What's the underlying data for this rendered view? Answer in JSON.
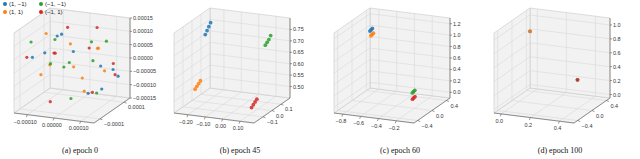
{
  "chart_data": [
    {
      "type": "scatter3d",
      "title": "(a) epoch 0",
      "legend": "upper left",
      "grid": true,
      "xlim": [
        -0.00015,
        0.00015
      ],
      "ylim": [
        -0.00015,
        0.00015
      ],
      "zlim": [
        -0.00015,
        0.00015
      ],
      "xticks": [
        {
          "value": -0.0001,
          "label": "−0.00010"
        },
        {
          "value": 0,
          "label": "0.00000"
        },
        {
          "value": 0.0001,
          "label": "0.00010"
        }
      ],
      "yticks": [
        {
          "value": -0.0001,
          "label": "−0.0001"
        },
        {
          "value": 0.0001,
          "label": "0.0001"
        }
      ],
      "zticks": [
        {
          "value": -0.00015,
          "label": "−0.00015"
        },
        {
          "value": -0.0001,
          "label": "−0.00010"
        },
        {
          "value": -5e-05,
          "label": "−0.00005"
        },
        {
          "value": 0,
          "label": "0.00000"
        },
        {
          "value": 5e-05,
          "label": "0.00005"
        },
        {
          "value": 0.0001,
          "label": "0.00010"
        },
        {
          "value": 0.00015,
          "label": "0.00015"
        }
      ],
      "series": [
        {
          "name": "(1, −1)",
          "color": "#1f77b4",
          "x": [
            -0.00012,
            5e-05,
            0.0001,
            -3e-05,
            8e-05,
            -9e-05,
            2e-05,
            0.00013,
            -6e-05,
            0.00011
          ],
          "y": [
            4e-05,
            -0.0001,
            0.00012,
            -2e-05,
            7e-05,
            -0.00013,
            9e-05,
            -5e-05,
            1e-05,
            0.00014
          ],
          "z": [
            2e-05,
            9e-05,
            -4e-05,
            0.00012,
            -0.0001,
            6e-05,
            -0.00013,
            3e-05,
            0.0001,
            -7e-05
          ]
        },
        {
          "name": "(1, 1)",
          "color": "#ff7f0e",
          "x": [
            3e-05,
            -0.00011,
            9e-05,
            -2e-05,
            0.00014,
            -7e-05,
            6e-05,
            -0.00013,
            1e-05,
            0.0001
          ],
          "y": [
            -8e-05,
            6e-05,
            2e-05,
            0.00013,
            -4e-05,
            -6e-05,
            -0.00012,
            3e-05,
            8e-05,
            -1e-05
          ],
          "z": [
            0.00011,
            -3e-05,
            7e-05,
            -9e-05,
            1e-05,
            0.00013,
            4e-05,
            -6e-05,
            -0.00012,
            8e-05
          ]
        },
        {
          "name": "(−1, −1)",
          "color": "#2ca02c",
          "x": [
            -8e-05,
            0.00012,
            -4e-05,
            7e-05,
            -0.00014,
            2e-05,
            0.0001,
            -0.0001,
            5e-05,
            -1e-05
          ],
          "y": [
            0.00011,
            2e-05,
            -9e-05,
            5e-05,
            -3e-05,
            0.00013,
            -6e-05,
            8e-05,
            -0.00012,
            0
          ],
          "z": [
            -5e-05,
            0.0001,
            3e-05,
            -0.00011,
            8e-05,
            -2e-05,
            0.00012,
            6e-05,
            -8e-05,
            1e-05
          ]
        },
        {
          "name": "(−1, 1)",
          "color": "#d62728",
          "x": [
            6e-05,
            -5e-05,
            0.00011,
            -0.00012,
            4e-05,
            9e-05,
            -9e-05,
            0,
            0.00013,
            -3e-05
          ],
          "y": [
            1e-05,
            -7e-05,
            0.0001,
            -0.00011,
            0.00012,
            -3e-05,
            5e-05,
            -0.00014,
            7e-05,
            3e-05
          ],
          "z": [
            7e-05,
            -0.00012,
            -1e-05,
            5e-05,
            0.00011,
            -8e-05,
            2e-05,
            9e-05,
            -4e-05,
            0.00013
          ]
        }
      ]
    },
    {
      "type": "scatter3d",
      "title": "(b) epoch 45",
      "grid": true,
      "xlim": [
        -0.28,
        0.18
      ],
      "ylim": [
        -0.2,
        0.2
      ],
      "zlim": [
        0.45,
        0.8
      ],
      "xticks": [
        {
          "value": -0.2,
          "label": "−0.20"
        },
        {
          "value": -0.1,
          "label": "−0.10"
        },
        {
          "value": 0,
          "label": "0.00"
        },
        {
          "value": 0.1,
          "label": "0.10"
        }
      ],
      "yticks": [
        {
          "value": -0.1,
          "label": "−0.1"
        },
        {
          "value": 0,
          "label": "0.0"
        },
        0.1
      ],
      "zticks": [
        {
          "value": 0.5,
          "label": "0.50"
        },
        0.55,
        {
          "value": 0.6,
          "label": "0.60"
        },
        0.65,
        {
          "value": 0.7,
          "label": "0.70"
        },
        0.75
      ],
      "series": [
        {
          "name": "(1, −1)",
          "color": "#1f77b4",
          "x": [
            -0.245,
            -0.24,
            -0.235,
            -0.23
          ],
          "y": [
            0.08,
            0.09,
            0.1,
            0.11
          ],
          "z": [
            0.72,
            0.735,
            0.75,
            0.765
          ]
        },
        {
          "name": "(1, 1)",
          "color": "#ff7f0e",
          "x": [
            -0.2,
            -0.195,
            -0.19,
            -0.185
          ],
          "y": [
            -0.12,
            -0.11,
            -0.1,
            -0.09
          ],
          "z": [
            0.54,
            0.55,
            0.56,
            0.57
          ]
        },
        {
          "name": "(−1, −1)",
          "color": "#2ca02c",
          "x": [
            0.09,
            0.095,
            0.1,
            0.105
          ],
          "y": [
            0.1,
            0.11,
            0.12,
            0.13
          ],
          "z": [
            0.7,
            0.71,
            0.72,
            0.735
          ]
        },
        {
          "name": "(−1, 1)",
          "color": "#d62728",
          "x": [
            0.14,
            0.145,
            0.15,
            0.155
          ],
          "y": [
            -0.15,
            -0.14,
            -0.13,
            -0.12
          ],
          "z": [
            0.5,
            0.51,
            0.52,
            0.53
          ]
        }
      ]
    },
    {
      "type": "scatter3d",
      "title": "(c) epoch 60",
      "grid": true,
      "xlim": [
        -0.9,
        0.0
      ],
      "ylim": [
        -0.5,
        0.5
      ],
      "zlim": [
        -0.1,
        1.3
      ],
      "xticks": [
        {
          "value": -0.8,
          "label": "−0.8"
        },
        {
          "value": -0.6,
          "label": "−0.6"
        },
        {
          "value": -0.4,
          "label": "−0.4"
        },
        {
          "value": -0.2,
          "label": "−0.2"
        }
      ],
      "yticks": [
        {
          "value": -0.4,
          "label": "−0.4"
        },
        {
          "value": 0,
          "label": "0.0"
        },
        0.4
      ],
      "zticks": [
        {
          "value": 0,
          "label": "0.0"
        },
        0.2,
        0.4,
        0.6,
        0.8,
        {
          "value": 1,
          "label": "1.0"
        },
        1.2
      ],
      "series": [
        {
          "name": "(1, −1)",
          "color": "#1f77b4",
          "x": [
            -0.82,
            -0.81,
            -0.8
          ],
          "y": [
            0.3,
            0.31,
            0.32
          ],
          "z": [
            1.0,
            1.02,
            1.04
          ]
        },
        {
          "name": "(1, 1)",
          "color": "#ff7f0e",
          "x": [
            -0.8,
            -0.79,
            -0.78
          ],
          "y": [
            0.28,
            0.29,
            0.3
          ],
          "z": [
            0.93,
            0.95,
            0.97
          ]
        },
        {
          "name": "(−1, −1)",
          "color": "#2ca02c",
          "x": [
            -0.1,
            -0.09,
            -0.08
          ],
          "y": [
            -0.3,
            -0.29,
            -0.28
          ],
          "z": [
            0.32,
            0.34,
            0.36
          ]
        },
        {
          "name": "(−1, 1)",
          "color": "#d62728",
          "x": [
            -0.09,
            -0.08,
            -0.07
          ],
          "y": [
            -0.32,
            -0.31,
            -0.3
          ],
          "z": [
            0.22,
            0.24,
            0.26
          ]
        }
      ]
    },
    {
      "type": "scatter3d",
      "title": "(d) epoch 100",
      "grid": true,
      "xlim": [
        -0.05,
        0.5
      ],
      "ylim": [
        -0.5,
        0.5
      ],
      "zlim": [
        -0.05,
        1.1
      ],
      "xticks": [
        {
          "value": 0,
          "label": "0.0"
        },
        0.2,
        0.4
      ],
      "yticks": [
        {
          "value": -0.4,
          "label": "−0.4"
        },
        {
          "value": 0,
          "label": "0.0"
        },
        0.4
      ],
      "zticks": [
        {
          "value": 0,
          "label": "0.0"
        },
        0.2,
        0.4,
        0.6,
        0.8,
        {
          "value": 1,
          "label": "1.0"
        }
      ],
      "series": [
        {
          "name": "(1, −1)",
          "color": "#1f77b4",
          "x": [
            0.0
          ],
          "y": [
            0.3
          ],
          "z": [
            0.85
          ]
        },
        {
          "name": "(1, 1)",
          "color": "#ff7f0e",
          "x": [
            0.0
          ],
          "y": [
            0.3
          ],
          "z": [
            0.85
          ]
        },
        {
          "name": "(−1, −1)",
          "color": "#2ca02c",
          "x": [
            0.45
          ],
          "y": [
            -0.2
          ],
          "z": [
            0.45
          ]
        },
        {
          "name": "(−1, 1)",
          "color": "#d62728",
          "x": [
            0.45
          ],
          "y": [
            -0.2
          ],
          "z": [
            0.45
          ]
        }
      ]
    }
  ]
}
